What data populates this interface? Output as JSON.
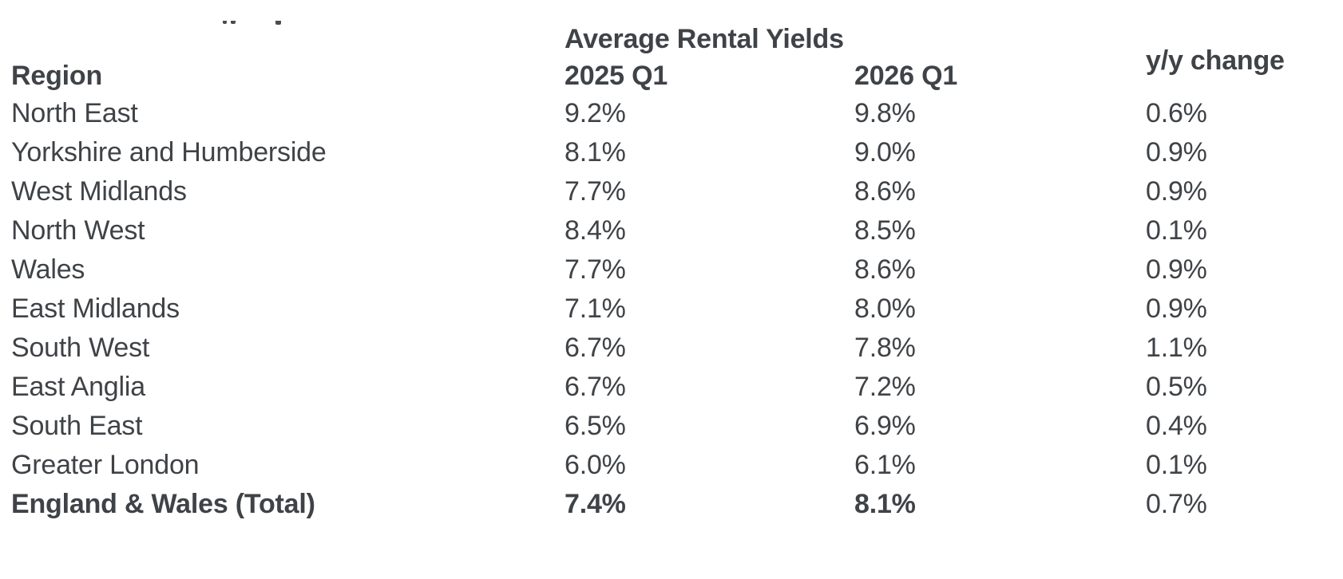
{
  "page": {
    "background": "#ffffff",
    "text_color": "#3f4347"
  },
  "table": {
    "group_header": "Average Rental Yields",
    "headers": {
      "region": "Region",
      "y2025": "2025 Q1",
      "y2026": "2026 Q1",
      "yy": "y/y change"
    },
    "rows": [
      {
        "region": "North East",
        "y2025": "9.2%",
        "y2026": "9.8%",
        "yy": "0.6%",
        "total": false
      },
      {
        "region": "Yorkshire and Humberside",
        "y2025": "8.1%",
        "y2026": "9.0%",
        "yy": "0.9%",
        "total": false
      },
      {
        "region": "West Midlands",
        "y2025": "7.7%",
        "y2026": "8.6%",
        "yy": "0.9%",
        "total": false
      },
      {
        "region": "North West",
        "y2025": "8.4%",
        "y2026": "8.5%",
        "yy": "0.1%",
        "total": false
      },
      {
        "region": "Wales",
        "y2025": "7.7%",
        "y2026": "8.6%",
        "yy": "0.9%",
        "total": false
      },
      {
        "region": "East Midlands",
        "y2025": "7.1%",
        "y2026": "8.0%",
        "yy": "0.9%",
        "total": false
      },
      {
        "region": "South West",
        "y2025": "6.7%",
        "y2026": "7.8%",
        "yy": "1.1%",
        "total": false
      },
      {
        "region": "East Anglia",
        "y2025": "6.7%",
        "y2026": "7.2%",
        "yy": "0.5%",
        "total": false
      },
      {
        "region": "South East",
        "y2025": "6.5%",
        "y2026": "6.9%",
        "yy": "0.4%",
        "total": false
      },
      {
        "region": "Greater London",
        "y2025": "6.0%",
        "y2026": "6.1%",
        "yy": "0.1%",
        "total": false
      },
      {
        "region": "England & Wales (Total)",
        "y2025": "7.4%",
        "y2026": "8.1%",
        "yy": "0.7%",
        "total": true
      }
    ]
  },
  "chart_data": {
    "type": "table",
    "title": "Average Rental Yields",
    "columns": [
      "Region",
      "2025 Q1",
      "2026 Q1",
      "y/y change"
    ],
    "units": "%",
    "rows": [
      [
        "North East",
        9.2,
        9.8,
        0.6
      ],
      [
        "Yorkshire and Humberside",
        8.1,
        9.0,
        0.9
      ],
      [
        "West Midlands",
        7.7,
        8.6,
        0.9
      ],
      [
        "North West",
        8.4,
        8.5,
        0.1
      ],
      [
        "Wales",
        7.7,
        8.6,
        0.9
      ],
      [
        "East Midlands",
        7.1,
        8.0,
        0.9
      ],
      [
        "South West",
        6.7,
        7.8,
        1.1
      ],
      [
        "East Anglia",
        6.7,
        7.2,
        0.5
      ],
      [
        "South East",
        6.5,
        6.9,
        0.4
      ],
      [
        "Greater London",
        6.0,
        6.1,
        0.1
      ],
      [
        "England & Wales (Total)",
        7.4,
        8.1,
        0.7
      ]
    ]
  }
}
